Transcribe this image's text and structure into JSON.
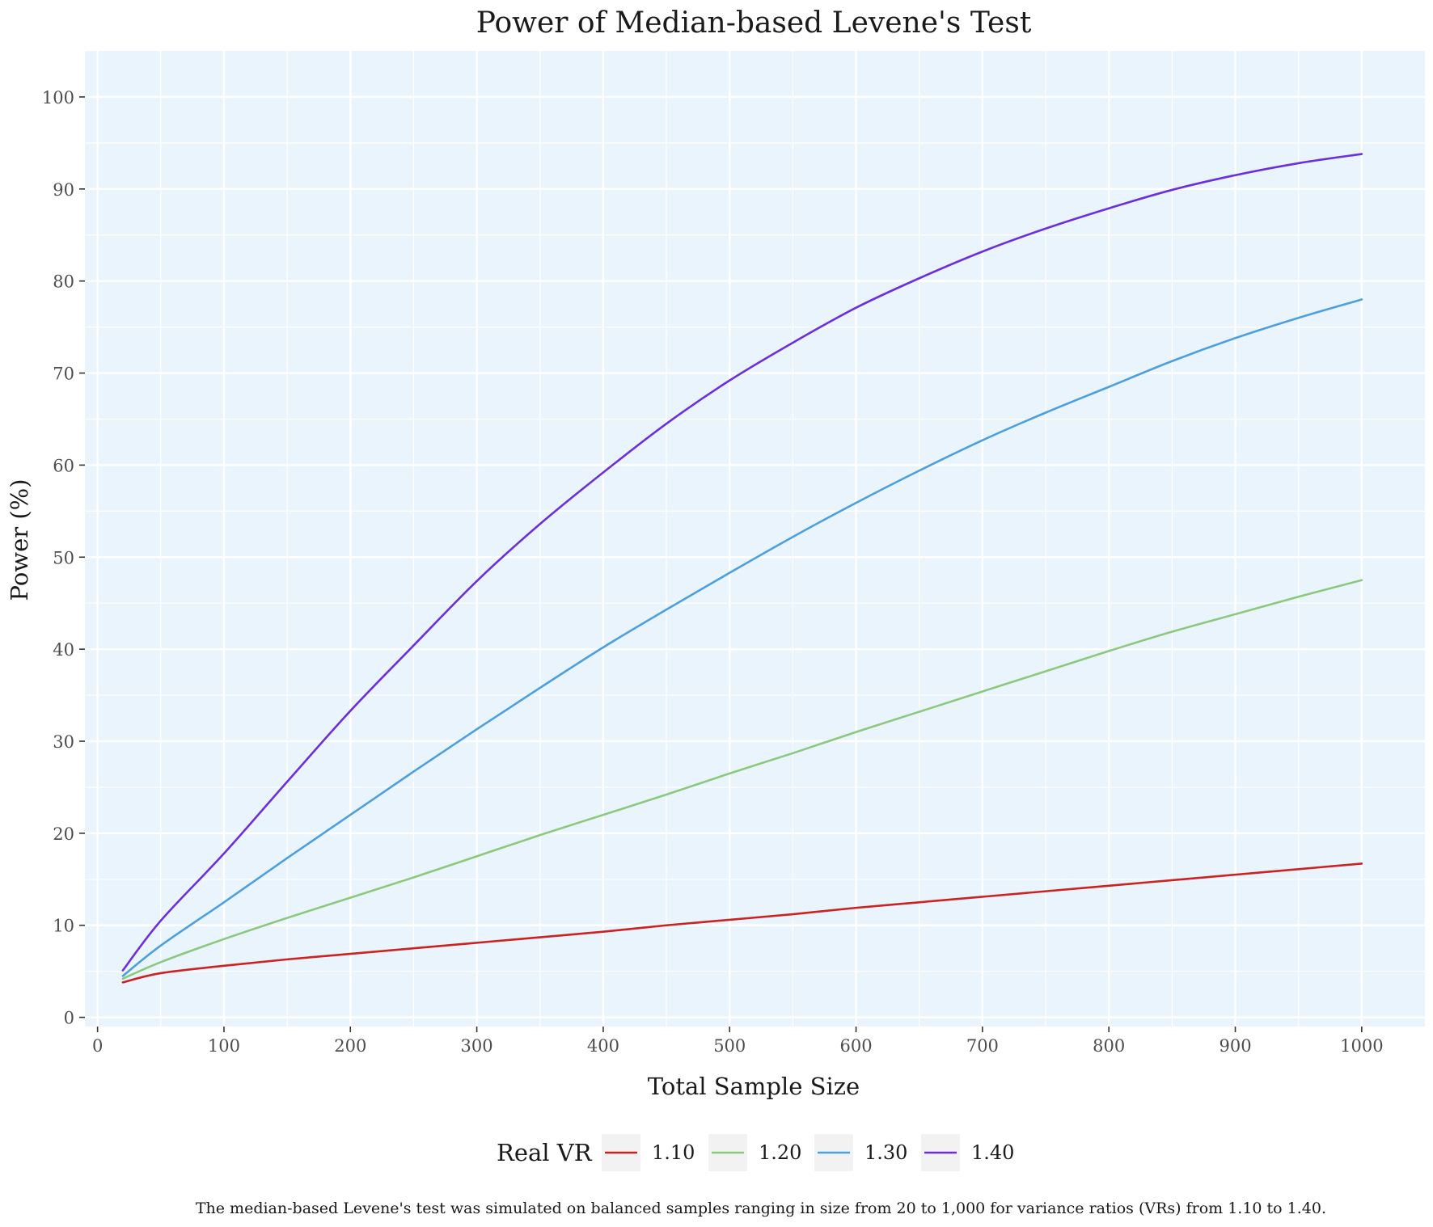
{
  "chart_data": {
    "type": "line",
    "title": "Power of Median-based Levene's Test",
    "xlabel": "Total Sample Size",
    "ylabel": "Power (%)",
    "xlim": [
      -10,
      1050
    ],
    "ylim": [
      -1,
      105
    ],
    "xticks": [
      0,
      100,
      200,
      300,
      400,
      500,
      600,
      700,
      800,
      900,
      1000
    ],
    "xtick_labels": [
      "0",
      "100",
      "200",
      "300",
      "400",
      "500",
      "600",
      "700",
      "800",
      "900",
      "1000"
    ],
    "yticks": [
      0,
      10,
      20,
      30,
      40,
      50,
      60,
      70,
      80,
      90,
      100
    ],
    "ytick_labels": [
      "0",
      "10",
      "20",
      "30",
      "40",
      "50",
      "60",
      "70",
      "80",
      "90",
      "100"
    ],
    "grid": true,
    "panel_background": "#EAF4FC",
    "legend_title": "Real VR",
    "legend_position": "bottom",
    "x": [
      20,
      50,
      100,
      150,
      200,
      250,
      300,
      350,
      400,
      450,
      500,
      550,
      600,
      650,
      700,
      750,
      800,
      850,
      900,
      950,
      1000
    ],
    "series": [
      {
        "name": "1.10",
        "color": "#CC2222",
        "values": [
          3.8,
          4.8,
          5.6,
          6.3,
          6.9,
          7.5,
          8.1,
          8.7,
          9.3,
          10.0,
          10.6,
          11.2,
          11.9,
          12.5,
          13.1,
          13.7,
          14.3,
          14.9,
          15.5,
          16.1,
          16.7
        ]
      },
      {
        "name": "1.20",
        "color": "#8CC97E",
        "values": [
          4.2,
          6.0,
          8.5,
          10.8,
          13.0,
          15.2,
          17.5,
          19.8,
          22.0,
          24.2,
          26.5,
          28.7,
          31.0,
          33.2,
          35.4,
          37.6,
          39.8,
          41.9,
          43.8,
          45.7,
          47.5
        ]
      },
      {
        "name": "1.30",
        "color": "#4C9FE0",
        "values": [
          4.5,
          7.8,
          12.5,
          17.3,
          22.0,
          26.7,
          31.3,
          35.8,
          40.2,
          44.3,
          48.3,
          52.2,
          55.9,
          59.4,
          62.7,
          65.7,
          68.5,
          71.3,
          73.8,
          76.0,
          78.0
        ]
      },
      {
        "name": "1.40",
        "color": "#6B2FE0",
        "values": [
          5.1,
          10.5,
          17.8,
          25.6,
          33.3,
          40.4,
          47.4,
          53.6,
          59.2,
          64.5,
          69.2,
          73.3,
          77.1,
          80.3,
          83.2,
          85.7,
          87.9,
          89.9,
          91.5,
          92.8,
          93.8
        ]
      }
    ],
    "caption": "The median-based Levene's test was simulated on balanced samples ranging in size from 20 to 1,000 for variance ratios (VRs) from 1.10 to 1.40."
  }
}
